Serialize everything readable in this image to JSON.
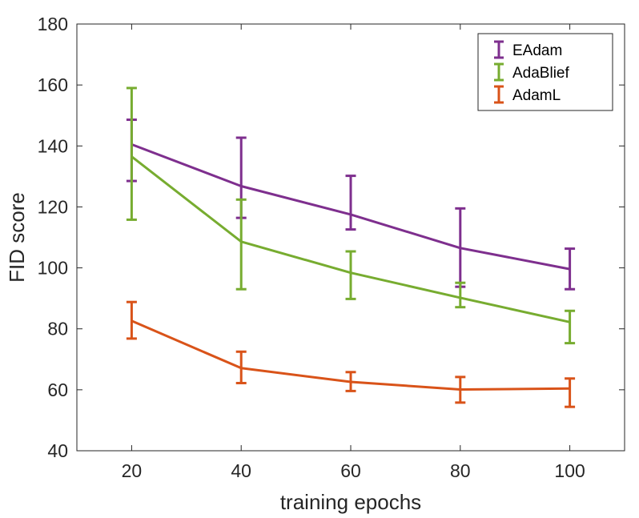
{
  "chart_data": {
    "type": "line",
    "title": "",
    "xlabel": "training epochs",
    "ylabel": "FID score",
    "x": [
      20,
      40,
      60,
      80,
      100
    ],
    "xlim": [
      10,
      110
    ],
    "ylim": [
      40,
      180
    ],
    "xticks": [
      20,
      40,
      60,
      80,
      100
    ],
    "yticks": [
      40,
      60,
      80,
      100,
      120,
      140,
      160,
      180
    ],
    "grid": false,
    "legend_position": "top-right",
    "series": [
      {
        "name": "EAdam",
        "color": "#7E2F8E",
        "values": [
          140.5,
          126.8,
          117.5,
          106.5,
          99.6
        ],
        "err_low": [
          128.5,
          116.4,
          112.6,
          93.8,
          93.0
        ],
        "err_high": [
          148.6,
          142.7,
          130.2,
          119.5,
          106.3
        ]
      },
      {
        "name": "AdaBlief",
        "color": "#77AC30",
        "values": [
          136.5,
          108.6,
          98.4,
          90.2,
          82.2
        ],
        "err_low": [
          115.8,
          93.0,
          89.8,
          87.1,
          75.3
        ],
        "err_high": [
          159.0,
          122.4,
          105.4,
          95.1,
          85.9
        ]
      },
      {
        "name": "AdamL",
        "color": "#D95319",
        "values": [
          82.6,
          67.1,
          62.6,
          60.1,
          60.4
        ],
        "err_low": [
          76.8,
          62.2,
          59.6,
          55.8,
          54.4
        ],
        "err_high": [
          88.8,
          72.5,
          65.8,
          64.2,
          63.7
        ]
      }
    ]
  }
}
